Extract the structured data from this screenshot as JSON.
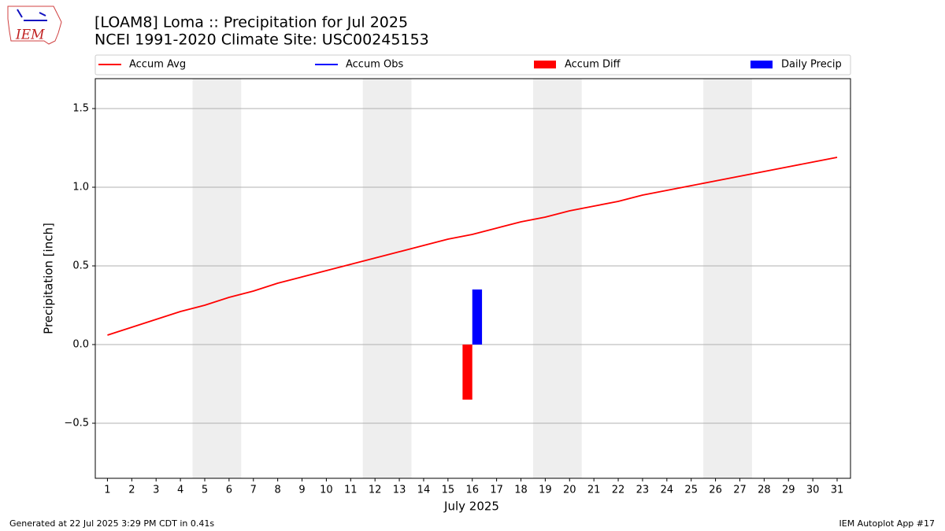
{
  "logo": "IEM",
  "chart_data": {
    "type": "line",
    "title": "[LOAM8] Loma :: Precipitation for Jul 2025",
    "subtitle": "NCEI 1991-2020 Climate Site: USC00245153",
    "x_label": "July 2025",
    "y_label": "Precipitation [inch]",
    "x": [
      1,
      2,
      3,
      4,
      5,
      6,
      7,
      8,
      9,
      10,
      11,
      12,
      13,
      14,
      15,
      16,
      17,
      18,
      19,
      20,
      21,
      22,
      23,
      24,
      25,
      26,
      27,
      28,
      29,
      30,
      31
    ],
    "series": [
      {
        "name": "Accum Avg",
        "type": "line",
        "color": "#ff0000",
        "values": [
          0.06,
          0.11,
          0.16,
          0.21,
          0.25,
          0.3,
          0.34,
          0.39,
          0.43,
          0.47,
          0.51,
          0.55,
          0.59,
          0.63,
          0.67,
          0.7,
          0.74,
          0.78,
          0.81,
          0.85,
          0.88,
          0.91,
          0.95,
          0.98,
          1.01,
          1.04,
          1.07,
          1.1,
          1.13,
          1.16,
          1.19
        ]
      },
      {
        "name": "Accum Obs",
        "type": "line",
        "color": "#0000ff",
        "values": [
          null,
          null,
          null,
          null,
          null,
          null,
          null,
          null,
          null,
          null,
          null,
          null,
          null,
          null,
          null,
          null,
          null,
          null,
          null,
          null,
          null,
          null,
          null,
          null,
          null,
          null,
          null,
          null,
          null,
          null,
          null
        ]
      },
      {
        "name": "Accum Diff",
        "type": "bar",
        "color": "#ff0000",
        "values": [
          null,
          null,
          null,
          null,
          null,
          null,
          null,
          null,
          null,
          null,
          null,
          null,
          null,
          null,
          null,
          -0.35,
          null,
          null,
          null,
          null,
          null,
          null,
          null,
          null,
          null,
          null,
          null,
          null,
          null,
          null,
          null
        ]
      },
      {
        "name": "Daily Precip",
        "type": "bar",
        "color": "#0000ff",
        "values": [
          null,
          null,
          null,
          null,
          null,
          null,
          null,
          null,
          null,
          null,
          null,
          null,
          null,
          null,
          null,
          0.35,
          null,
          null,
          null,
          null,
          null,
          null,
          null,
          null,
          null,
          null,
          null,
          null,
          null,
          null,
          null
        ]
      }
    ],
    "weekend_spans": [
      [
        4.5,
        6.5
      ],
      [
        11.5,
        13.5
      ],
      [
        18.5,
        20.5
      ],
      [
        25.5,
        27.5
      ]
    ],
    "xlim": [
      0.5,
      31.55
    ],
    "xticks": [
      1,
      2,
      3,
      4,
      5,
      6,
      7,
      8,
      9,
      10,
      11,
      12,
      13,
      14,
      15,
      16,
      17,
      18,
      19,
      20,
      21,
      22,
      23,
      24,
      25,
      26,
      27,
      28,
      29,
      30,
      31
    ],
    "ylim": [
      -0.85,
      1.69
    ],
    "yticks": [
      {
        "value": -0.5,
        "label": "−0.5"
      },
      {
        "value": 0,
        "label": "0.0"
      },
      {
        "value": 0.5,
        "label": "0.5"
      },
      {
        "value": 1,
        "label": "1.0"
      },
      {
        "value": 1.5,
        "label": "1.5"
      }
    ],
    "grid": true,
    "legend": "top"
  },
  "footer_left": "Generated at 22 Jul 2025 3:29 PM CDT in 0.41s",
  "footer_right": "IEM Autoplot App #17"
}
